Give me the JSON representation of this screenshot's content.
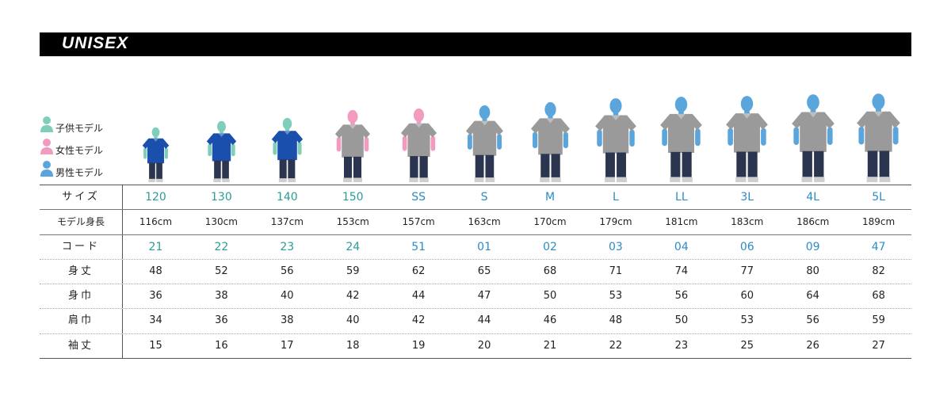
{
  "title": "UNISEX",
  "legend": [
    {
      "label": "子供モデル",
      "color": "#7fcdbb"
    },
    {
      "label": "女性モデル",
      "color": "#f29ac0"
    },
    {
      "label": "男性モデル",
      "color": "#5aa6dc"
    }
  ],
  "colors": {
    "child": "#7fcdbb",
    "female": "#f29ac0",
    "male": "#5aa6dc",
    "shirt_blue": "#1a4fae",
    "shirt_gray": "#9a9a9a",
    "pants": "#2b3550",
    "size_text_teal": "#2a9d95",
    "size_text_blue": "#2b8cc4"
  },
  "models": [
    {
      "kind": "child",
      "shirt": "blue",
      "height_cm": 116
    },
    {
      "kind": "child",
      "shirt": "blue",
      "height_cm": 130
    },
    {
      "kind": "child",
      "shirt": "blue",
      "height_cm": 137
    },
    {
      "kind": "female",
      "shirt": "gray",
      "height_cm": 153
    },
    {
      "kind": "female",
      "shirt": "gray",
      "height_cm": 157
    },
    {
      "kind": "male",
      "shirt": "gray",
      "height_cm": 163
    },
    {
      "kind": "male",
      "shirt": "gray",
      "height_cm": 170
    },
    {
      "kind": "male",
      "shirt": "gray",
      "height_cm": 179
    },
    {
      "kind": "male",
      "shirt": "gray",
      "height_cm": 181
    },
    {
      "kind": "male",
      "shirt": "gray",
      "height_cm": 183
    },
    {
      "kind": "male",
      "shirt": "gray",
      "height_cm": 186
    },
    {
      "kind": "male",
      "shirt": "gray",
      "height_cm": 189
    }
  ],
  "table": {
    "size": {
      "label": "サイズ",
      "values": [
        "120",
        "130",
        "140",
        "150",
        "SS",
        "S",
        "M",
        "L",
        "LL",
        "3L",
        "4L",
        "5L"
      ]
    },
    "height": {
      "label": "モデル身長",
      "values": [
        "116cm",
        "130cm",
        "137cm",
        "153cm",
        "157cm",
        "163cm",
        "170cm",
        "179cm",
        "181cm",
        "183cm",
        "186cm",
        "189cm"
      ]
    },
    "code": {
      "label": "コード",
      "values": [
        "21",
        "22",
        "23",
        "24",
        "51",
        "01",
        "02",
        "03",
        "04",
        "06",
        "09",
        "47"
      ]
    },
    "length": {
      "label": "身丈",
      "values": [
        "48",
        "52",
        "56",
        "59",
        "62",
        "65",
        "68",
        "71",
        "74",
        "77",
        "80",
        "82"
      ]
    },
    "width": {
      "label": "身巾",
      "values": [
        "36",
        "38",
        "40",
        "42",
        "44",
        "47",
        "50",
        "53",
        "56",
        "60",
        "64",
        "68"
      ]
    },
    "shoulder": {
      "label": "肩巾",
      "values": [
        "34",
        "36",
        "38",
        "40",
        "42",
        "44",
        "46",
        "48",
        "50",
        "53",
        "56",
        "59"
      ]
    },
    "sleeve": {
      "label": "袖丈",
      "values": [
        "15",
        "16",
        "17",
        "18",
        "19",
        "20",
        "21",
        "22",
        "23",
        "25",
        "26",
        "27"
      ]
    }
  }
}
